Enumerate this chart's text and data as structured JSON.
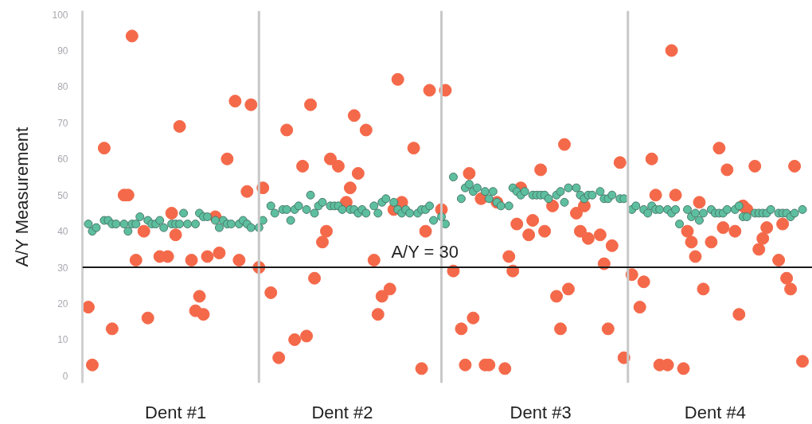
{
  "chart_data": {
    "type": "scatter",
    "ylabel": "A/Y Measurement",
    "marker": "circle",
    "categories": [
      null,
      null,
      null,
      null,
      null,
      null,
      null,
      null,
      null,
      null,
      null,
      null,
      null,
      null,
      null,
      null,
      null,
      null,
      null,
      null,
      null,
      null,
      null,
      "Dent #1",
      null,
      null,
      null,
      null,
      null,
      null,
      null,
      null,
      null,
      null,
      null,
      null,
      null,
      null,
      null,
      null,
      null,
      null,
      null,
      null,
      null,
      null,
      null,
      null,
      null,
      null,
      null,
      null,
      null,
      null,
      null,
      null,
      null,
      null,
      null,
      null,
      null,
      null,
      null,
      null,
      null,
      "Dent #2",
      null,
      null,
      null,
      null,
      null,
      null,
      null,
      null,
      null,
      null,
      null,
      null,
      null,
      null,
      null,
      null,
      null,
      null,
      null,
      null,
      null,
      null,
      null,
      null,
      null,
      null,
      null,
      null,
      null,
      null,
      null,
      null,
      null,
      null,
      null,
      null,
      null,
      null,
      null,
      null,
      null,
      null,
      null,
      null,
      null,
      null,
      null,
      null,
      null,
      "Dent #3",
      null,
      null,
      null,
      null,
      null,
      null,
      null,
      null,
      null,
      null,
      null,
      null,
      null,
      null,
      null,
      null,
      null,
      null,
      null,
      null,
      null,
      null,
      null,
      null,
      null,
      null,
      null,
      null,
      null,
      null,
      null,
      null,
      null,
      null,
      null,
      null,
      null,
      null,
      null,
      null,
      null,
      null,
      null,
      "Dent #4",
      null,
      null,
      null,
      null,
      null,
      null,
      null,
      null,
      null,
      null,
      null,
      null,
      null,
      null,
      null,
      null,
      null,
      null,
      null,
      null,
      null,
      null,
      null,
      null
    ],
    "ylim": [
      -2,
      101
    ],
    "yticks": [
      0,
      10,
      20,
      30,
      40,
      50,
      60,
      70,
      80,
      90,
      100
    ],
    "ref_lines": [
      {
        "axis": "y",
        "value": 30,
        "label": "A/Y  = 30",
        "color": "#1a1a1a"
      }
    ],
    "series": [
      {
        "color": "#f4694a",
        "values": [
          null,
          19,
          3,
          null,
          null,
          63,
          null,
          13,
          null,
          null,
          50,
          50,
          94,
          32,
          null,
          40,
          16,
          null,
          null,
          33,
          null,
          33,
          45,
          39,
          69,
          null,
          null,
          32,
          18,
          22,
          17,
          33,
          null,
          44,
          34,
          null,
          60,
          null,
          76,
          32,
          null,
          51,
          75,
          null,
          30,
          52,
          null,
          23,
          null,
          5,
          null,
          68,
          null,
          10,
          null,
          58,
          11,
          75,
          27,
          null,
          37,
          40,
          60,
          null,
          58,
          null,
          48,
          52,
          72,
          56,
          null,
          68,
          null,
          32,
          17,
          22,
          null,
          24,
          46,
          82,
          48,
          null,
          null,
          63,
          null,
          2,
          40,
          79,
          null,
          null,
          46,
          79,
          null,
          29,
          null,
          13,
          3,
          56,
          16,
          null,
          49,
          3,
          3,
          null,
          48,
          null,
          2,
          33,
          29,
          42,
          52,
          null,
          39,
          43,
          null,
          57,
          40,
          null,
          47,
          22,
          13,
          64,
          24,
          null,
          45,
          40,
          47,
          38,
          null,
          null,
          39,
          31,
          13,
          36,
          null,
          59,
          5,
          null,
          28,
          null,
          19,
          26,
          null,
          60,
          50,
          3,
          null,
          3,
          90,
          50,
          null,
          2,
          40,
          37,
          33,
          48,
          24,
          null,
          37,
          null,
          63,
          41,
          57,
          null,
          40,
          17,
          47,
          46,
          null,
          58,
          35,
          38,
          41,
          null,
          null,
          32,
          42,
          27,
          24,
          58,
          null,
          4,
          null,
          null
        ]
      },
      {
        "color": "#5dbf9f",
        "values": [
          null,
          42,
          40,
          41,
          null,
          43,
          43,
          42,
          42,
          null,
          42,
          40,
          42,
          42,
          44,
          null,
          43,
          42,
          42,
          43,
          41,
          null,
          42,
          42,
          42,
          45,
          42,
          null,
          42,
          45,
          44,
          44,
          null,
          43,
          41,
          43,
          42,
          42,
          null,
          42,
          43,
          42,
          41,
          null,
          41,
          43,
          null,
          47,
          45,
          null,
          46,
          46,
          43,
          46,
          47,
          null,
          46,
          50,
          45,
          47,
          48,
          null,
          47,
          47,
          47,
          46,
          null,
          46,
          46,
          45,
          46,
          45,
          null,
          47,
          45,
          48,
          49,
          null,
          48,
          46,
          45,
          46,
          45,
          null,
          45,
          46,
          46,
          47,
          43,
          null,
          44,
          42,
          null,
          55,
          null,
          49,
          52,
          53,
          51,
          52,
          null,
          51,
          49,
          51,
          48,
          47,
          null,
          47,
          52,
          51,
          50,
          51,
          null,
          50,
          50,
          50,
          50,
          49,
          null,
          50,
          51,
          48,
          52,
          null,
          52,
          50,
          49,
          50,
          50,
          null,
          51,
          49,
          49,
          50,
          null,
          49,
          49,
          null,
          46,
          47,
          null,
          46,
          45,
          47,
          46,
          46,
          null,
          46,
          45,
          46,
          42,
          null,
          46,
          44,
          45,
          43,
          45,
          null,
          46,
          45,
          45,
          45,
          46,
          null,
          46,
          47,
          44,
          44,
          null,
          45,
          45,
          45,
          45,
          46,
          null,
          45,
          45,
          45,
          44,
          45,
          null,
          46,
          null,
          null
        ]
      }
    ]
  }
}
